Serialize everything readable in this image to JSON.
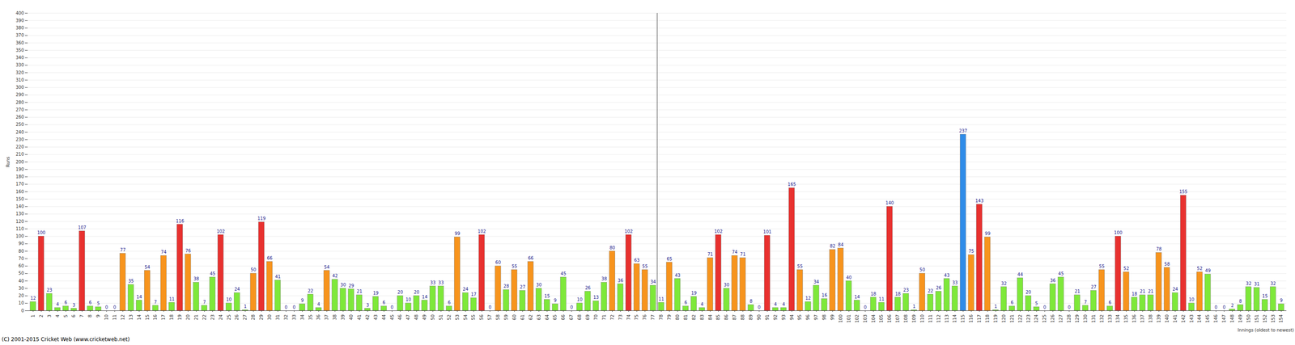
{
  "chart_data": {
    "type": "bar",
    "y_label": "Runs",
    "x_label": "Innings (oldest to newest)",
    "caption": "(C) 2001-2015 Cricket Web (www.cricketweb.net)",
    "categories": [
      1,
      2,
      3,
      4,
      5,
      6,
      7,
      8,
      9,
      10,
      11,
      12,
      13,
      14,
      15,
      16,
      17,
      18,
      19,
      20,
      21,
      22,
      23,
      24,
      25,
      26,
      27,
      28,
      29,
      30,
      31,
      32,
      33,
      34,
      35,
      36,
      37,
      38,
      39,
      40,
      41,
      42,
      43,
      44,
      45,
      46,
      47,
      48,
      49,
      50,
      51,
      52,
      53,
      54,
      55,
      56,
      57,
      58,
      59,
      60,
      61,
      62,
      63,
      64,
      65,
      66,
      67,
      68,
      69,
      70,
      71,
      72,
      73,
      74,
      75,
      76,
      77,
      78,
      79,
      80,
      81,
      82,
      83,
      84,
      85,
      86,
      87,
      88,
      89,
      90,
      91,
      92,
      93,
      94,
      95,
      96,
      97,
      98,
      99,
      100,
      101,
      102,
      103,
      104,
      105,
      106,
      107,
      108,
      109,
      110,
      111,
      112,
      113,
      114,
      115,
      116,
      117,
      118,
      119,
      120,
      121,
      122,
      123,
      124,
      125,
      126,
      127,
      128,
      129,
      130,
      131,
      132,
      133,
      134,
      135,
      136,
      137,
      138,
      139,
      140,
      141,
      142,
      143,
      144,
      145,
      146,
      147,
      148,
      149,
      150,
      151,
      152,
      153,
      154
    ],
    "values": [
      12,
      100,
      23,
      4,
      6,
      3,
      107,
      6,
      5,
      0,
      0,
      77,
      35,
      14,
      54,
      7,
      74,
      11,
      116,
      76,
      38,
      7,
      45,
      102,
      10,
      24,
      1,
      50,
      119,
      66,
      41,
      0,
      0,
      9,
      22,
      4,
      54,
      42,
      30,
      29,
      21,
      3,
      19,
      6,
      0,
      20,
      10,
      20,
      14,
      33,
      33,
      6,
      99,
      24,
      17,
      102,
      0,
      60,
      28,
      55,
      27,
      66,
      30,
      15,
      9,
      45,
      0,
      10,
      26,
      13,
      38,
      80,
      36,
      102,
      63,
      55,
      34,
      11,
      65,
      43,
      6,
      19,
      4,
      71,
      102,
      30,
      74,
      71,
      8,
      0,
      101,
      4,
      4,
      165,
      55,
      12,
      34,
      16,
      82,
      84,
      40,
      14,
      0,
      18,
      11,
      140,
      18,
      23,
      1,
      50,
      22,
      26,
      43,
      33,
      237,
      75,
      143,
      99,
      1,
      32,
      6,
      44,
      20,
      5,
      0,
      36,
      45,
      0,
      21,
      7,
      27,
      55,
      6,
      100,
      52,
      18,
      21,
      21,
      78,
      58,
      24,
      155,
      10,
      52,
      49,
      0,
      0,
      2,
      8,
      32,
      31,
      15,
      32,
      9
    ],
    "colors": [
      "#7ee83a",
      "#e8312f",
      "#7ee83a",
      "#7ee83a",
      "#7ee83a",
      "#7ee83a",
      "#e8312f",
      "#7ee83a",
      "#7ee83a",
      "#7ee83a",
      "#7ee83a",
      "#f7941d",
      "#7ee83a",
      "#7ee83a",
      "#f7941d",
      "#7ee83a",
      "#f7941d",
      "#7ee83a",
      "#e8312f",
      "#f7941d",
      "#7ee83a",
      "#7ee83a",
      "#7ee83a",
      "#e8312f",
      "#7ee83a",
      "#7ee83a",
      "#7ee83a",
      "#f7941d",
      "#e8312f",
      "#f7941d",
      "#7ee83a",
      "#7ee83a",
      "#7ee83a",
      "#7ee83a",
      "#7ee83a",
      "#7ee83a",
      "#f7941d",
      "#7ee83a",
      "#7ee83a",
      "#7ee83a",
      "#7ee83a",
      "#7ee83a",
      "#7ee83a",
      "#7ee83a",
      "#7ee83a",
      "#7ee83a",
      "#7ee83a",
      "#7ee83a",
      "#7ee83a",
      "#7ee83a",
      "#7ee83a",
      "#7ee83a",
      "#f7941d",
      "#7ee83a",
      "#7ee83a",
      "#e8312f",
      "#7ee83a",
      "#f7941d",
      "#7ee83a",
      "#f7941d",
      "#7ee83a",
      "#f7941d",
      "#7ee83a",
      "#7ee83a",
      "#7ee83a",
      "#7ee83a",
      "#7ee83a",
      "#7ee83a",
      "#7ee83a",
      "#7ee83a",
      "#7ee83a",
      "#f7941d",
      "#7ee83a",
      "#e8312f",
      "#f7941d",
      "#f7941d",
      "#7ee83a",
      "#7ee83a",
      "#f7941d",
      "#7ee83a",
      "#7ee83a",
      "#7ee83a",
      "#7ee83a",
      "#f7941d",
      "#e8312f",
      "#7ee83a",
      "#f7941d",
      "#f7941d",
      "#7ee83a",
      "#7ee83a",
      "#e8312f",
      "#7ee83a",
      "#7ee83a",
      "#e8312f",
      "#f7941d",
      "#7ee83a",
      "#7ee83a",
      "#7ee83a",
      "#f7941d",
      "#f7941d",
      "#7ee83a",
      "#7ee83a",
      "#7ee83a",
      "#7ee83a",
      "#7ee83a",
      "#e8312f",
      "#7ee83a",
      "#7ee83a",
      "#7ee83a",
      "#f7941d",
      "#7ee83a",
      "#7ee83a",
      "#7ee83a",
      "#7ee83a",
      "#2f8ce8",
      "#f7941d",
      "#e8312f",
      "#f7941d",
      "#7ee83a",
      "#7ee83a",
      "#7ee83a",
      "#7ee83a",
      "#7ee83a",
      "#7ee83a",
      "#7ee83a",
      "#7ee83a",
      "#7ee83a",
      "#7ee83a",
      "#7ee83a",
      "#7ee83a",
      "#7ee83a",
      "#f7941d",
      "#7ee83a",
      "#e8312f",
      "#f7941d",
      "#7ee83a",
      "#7ee83a",
      "#7ee83a",
      "#f7941d",
      "#f7941d",
      "#7ee83a",
      "#e8312f",
      "#7ee83a",
      "#f7941d",
      "#7ee83a",
      "#7ee83a",
      "#7ee83a",
      "#7ee83a",
      "#7ee83a",
      "#7ee83a",
      "#7ee83a",
      "#7ee83a",
      "#7ee83a",
      "#7ee83a"
    ],
    "ylim": [
      0,
      400
    ],
    "yticks": [
      0,
      10,
      20,
      30,
      40,
      50,
      60,
      70,
      80,
      90,
      100,
      110,
      120,
      130,
      140,
      150,
      160,
      170,
      180,
      190,
      200,
      210,
      220,
      230,
      240,
      250,
      260,
      270,
      280,
      290,
      300,
      310,
      320,
      330,
      340,
      350,
      360,
      370,
      380,
      390,
      400
    ],
    "grid": true,
    "data_labels": true
  }
}
